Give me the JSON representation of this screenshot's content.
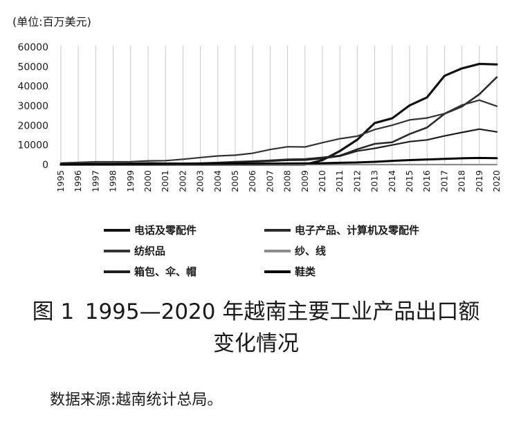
{
  "unit_note": "(单位:百万美元)",
  "caption": {
    "fig_label": "图 1",
    "line1_rest": "1995—2020 年越南主要工业产品出口额",
    "line2": "变化情况"
  },
  "source_note": "数据来源:越南统计总局。",
  "chart_data": {
    "type": "line",
    "title": "",
    "xlabel": "",
    "ylabel": "(单位:百万美元)",
    "ylim": [
      0,
      60000
    ],
    "yticks": [
      0,
      10000,
      20000,
      30000,
      40000,
      50000,
      60000
    ],
    "ytick_labels": [
      "0",
      "10000",
      "20000",
      "30000",
      "40000",
      "50000",
      "60000"
    ],
    "grid": "vertical",
    "legend_position": "bottom",
    "categories": [
      "1995",
      "1996",
      "1997",
      "1998",
      "1999",
      "2000",
      "2001",
      "2002",
      "2003",
      "2004",
      "2005",
      "2006",
      "2007",
      "2008",
      "2009",
      "2010",
      "2011",
      "2012",
      "2013",
      "2014",
      "2015",
      "2016",
      "2017",
      "2018",
      "2019",
      "2020"
    ],
    "series": [
      {
        "name": "电话及零配件",
        "color": "#111111",
        "width": 3.2,
        "values": [
          0,
          0,
          0,
          0,
          0,
          0,
          0,
          0,
          0,
          0,
          0,
          0,
          0,
          0,
          0,
          2300,
          6900,
          12700,
          21200,
          23600,
          30200,
          34300,
          45300,
          49100,
          51400,
          51100
        ]
      },
      {
        "name": "电子产品、计算机及零配件",
        "color": "#2b2b2b",
        "width": 2.6,
        "values": [
          300,
          400,
          500,
          500,
          600,
          800,
          700,
          600,
          700,
          1000,
          1400,
          1700,
          2100,
          2600,
          2800,
          3600,
          4600,
          7800,
          10600,
          11400,
          15600,
          18900,
          25900,
          29600,
          35900,
          44600
        ]
      },
      {
        "name": "纺织品",
        "color": "#333333",
        "width": 2.2,
        "values": [
          800,
          1100,
          1400,
          1400,
          1500,
          1900,
          2000,
          2700,
          3600,
          4400,
          4800,
          5800,
          7700,
          9100,
          9000,
          11200,
          13200,
          14500,
          17900,
          20100,
          22800,
          23800,
          26000,
          30400,
          32900,
          29800
        ]
      },
      {
        "name": "纱、线",
        "color": "#8c8c8c",
        "width": 2.2,
        "values": [
          0,
          0,
          0,
          0,
          0,
          0,
          0,
          0,
          0,
          0,
          0,
          0,
          0,
          0,
          0,
          0,
          0,
          0,
          0,
          0,
          0,
          0,
          0,
          0,
          0,
          0
        ]
      },
      {
        "name": "箱包、伞、帽",
        "color": "#1e1e1e",
        "width": 2.2,
        "values": [
          200,
          250,
          300,
          300,
          350,
          400,
          450,
          550,
          700,
          900,
          1100,
          1400,
          1700,
          2200,
          2300,
          3100,
          4300,
          6900,
          8300,
          10000,
          11700,
          12600,
          14600,
          16400,
          18100,
          16700
        ]
      },
      {
        "name": "鞋类",
        "color": "#000000",
        "width": 3.0,
        "values": [
          100,
          150,
          200,
          200,
          250,
          300,
          320,
          340,
          360,
          380,
          420,
          460,
          520,
          580,
          600,
          700,
          900,
          1100,
          1400,
          1900,
          2300,
          2600,
          2900,
          3200,
          3400,
          3300
        ]
      }
    ]
  }
}
